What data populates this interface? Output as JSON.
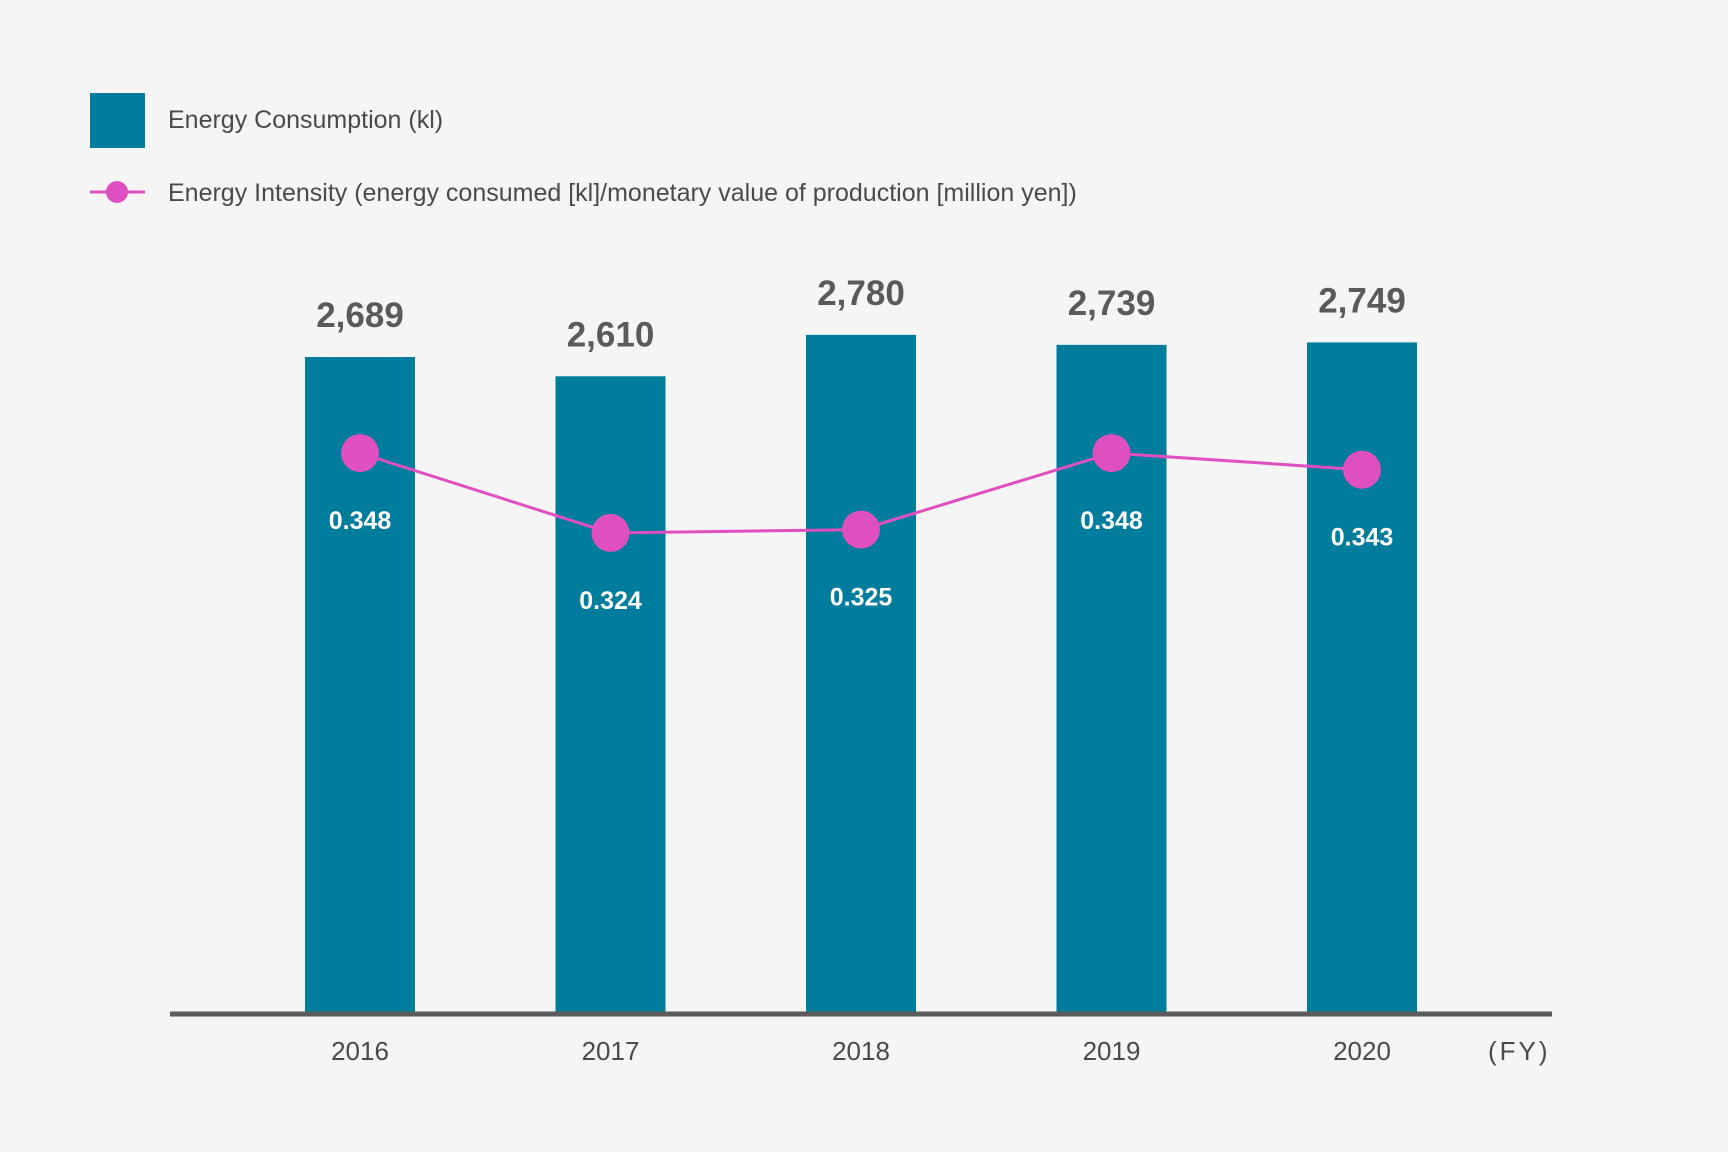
{
  "colors": {
    "bar": "#007c9d",
    "line": "#e04fbf",
    "axis": "#5b5b5b",
    "background": "#f5f5f5"
  },
  "legend": {
    "bar_label": "Energy Consumption (kl)",
    "line_label": "Energy Intensity (energy consumed [kl]/monetary value of production [million yen])"
  },
  "x_unit": "(FY)",
  "chart_data": {
    "type": "bar",
    "categories": [
      "2016",
      "2017",
      "2018",
      "2019",
      "2020"
    ],
    "series": [
      {
        "name": "Energy Consumption (kl)",
        "type": "bar",
        "values": [
          2689,
          2610,
          2780,
          2739,
          2749
        ],
        "labels": [
          "2,689",
          "2,610",
          "2,780",
          "2,739",
          "2,749"
        ]
      },
      {
        "name": "Energy Intensity (energy consumed [kl]/monetary value of production [million yen])",
        "type": "line",
        "values": [
          0.348,
          0.324,
          0.325,
          0.348,
          0.343
        ],
        "labels": [
          "0.348",
          "0.324",
          "0.325",
          "0.348",
          "0.343"
        ]
      }
    ],
    "xlabel": "(FY)",
    "ylim_bar": [
      0,
      2800
    ],
    "ylim_line": [
      0.18,
      0.385
    ]
  }
}
